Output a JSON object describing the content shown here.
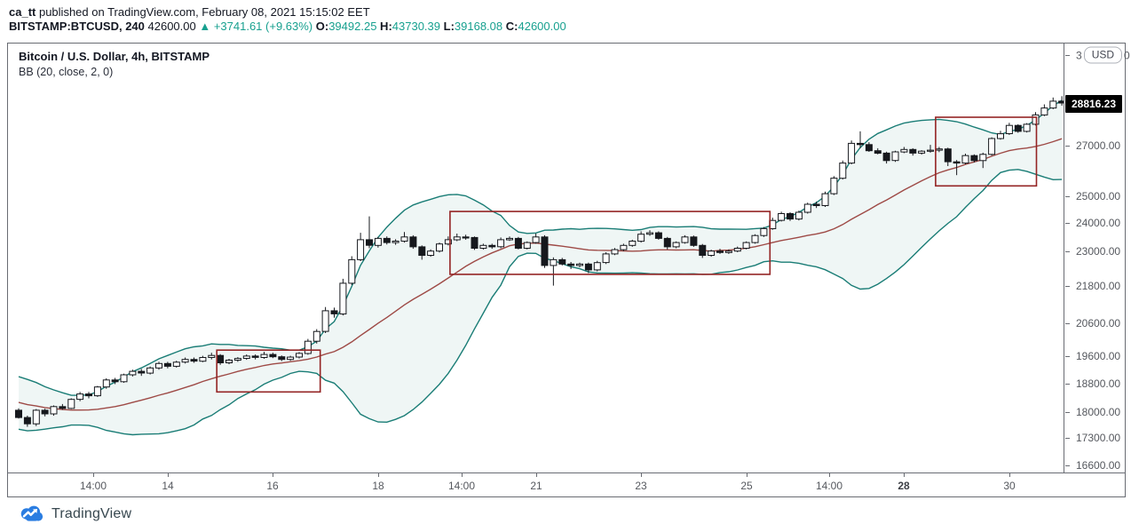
{
  "header": {
    "line1": [
      {
        "text": "ca_tt",
        "bold": true
      },
      {
        "text": " published on TradingView.com, February 08, 2021 15:15:02 EET"
      }
    ],
    "line2": [
      {
        "text": "BITSTAMP:BTCUSD, 240",
        "bold": true
      },
      {
        "text": " 42600.00 "
      },
      {
        "text": "▲ +3741.61 (+9.63%)",
        "teal": true
      },
      {
        "text": " O:",
        "bold": true
      },
      {
        "text": "39492.25",
        "teal": true
      },
      {
        "text": " H:",
        "bold": true
      },
      {
        "text": "43730.39",
        "teal": true
      },
      {
        "text": " L:",
        "bold": true
      },
      {
        "text": "39168.08",
        "teal": true
      },
      {
        "text": " C:",
        "bold": true
      },
      {
        "text": "42600.00",
        "teal": true
      }
    ]
  },
  "footer": {
    "brand": "TradingView"
  },
  "colors": {
    "accent_teal": "#17a08f",
    "band_line": "#1a7d76",
    "band_fill": "rgba(26,125,118,0.07)",
    "basis_line": "#9e4a46",
    "box_stroke": "#942424",
    "candle_dark": "#16181d",
    "candle_up_fill": "#ffffff",
    "axis_text": "#55585e",
    "frame_line": "#696c73",
    "tag_bg": "#000000",
    "tag_text": "#ffffff",
    "logo_blue": "#2a7de1"
  },
  "price_axis": {
    "currency_button": "USD",
    "partial_tick": {
      "prefix": "3",
      "suffix": "0",
      "price": 31000
    },
    "price_tag": {
      "label": "28816.23",
      "price": 28816.23
    }
  },
  "chart_data": {
    "type": "candlestick",
    "title": "Bitcoin / U.S. Dollar, 4h, BITSTAMP",
    "indicator": "BB (20, close, 2, 0)",
    "symbol": "BITSTAMP:BTCUSD",
    "interval": "4h",
    "scale": "log",
    "y_domain": [
      16416,
      31551
    ],
    "grid": false,
    "yticks": [
      {
        "label": "27000.00",
        "price": 27000
      },
      {
        "label": "25000.00",
        "price": 25000
      },
      {
        "label": "24000.00",
        "price": 24000
      },
      {
        "label": "23000.00",
        "price": 23000
      },
      {
        "label": "21800.00",
        "price": 21800
      },
      {
        "label": "20600.00",
        "price": 20600
      },
      {
        "label": "19600.00",
        "price": 19600
      },
      {
        "label": "18800.00",
        "price": 18800
      },
      {
        "label": "18000.00",
        "price": 18000
      },
      {
        "label": "17300.00",
        "price": 17300
      },
      {
        "label": "16600.00",
        "price": 16600
      }
    ],
    "xticks": [
      {
        "label": "14:00",
        "bar": 8.5
      },
      {
        "label": "14",
        "bar": 17
      },
      {
        "label": "16",
        "bar": 29
      },
      {
        "label": "18",
        "bar": 41
      },
      {
        "label": "14:00",
        "bar": 50.5
      },
      {
        "label": "21",
        "bar": 59
      },
      {
        "label": "23",
        "bar": 71
      },
      {
        "label": "25",
        "bar": 83
      },
      {
        "label": "14:00",
        "bar": 92.5
      },
      {
        "label": "28",
        "bar": 101,
        "bold": true
      },
      {
        "label": "30",
        "bar": 113
      }
    ],
    "bb": {
      "length": 20,
      "source": "close",
      "mult": 2,
      "offset": 0,
      "seed_closes": [
        19000,
        18900,
        18800,
        18850,
        18700,
        18600,
        18650,
        18500,
        18400,
        18300,
        18200,
        18100,
        18000,
        17900,
        17850,
        17900,
        17950,
        18000,
        17900,
        17950
      ]
    },
    "candles": [
      [
        18050,
        18100,
        17820,
        17850
      ],
      [
        17850,
        17900,
        17600,
        17680
      ],
      [
        17680,
        18080,
        17620,
        18050
      ],
      [
        18050,
        18090,
        17880,
        17950
      ],
      [
        17950,
        18180,
        17900,
        18150
      ],
      [
        18150,
        18220,
        18060,
        18100
      ],
      [
        18100,
        18380,
        18080,
        18350
      ],
      [
        18350,
        18560,
        18300,
        18500
      ],
      [
        18500,
        18560,
        18380,
        18450
      ],
      [
        18450,
        18730,
        18420,
        18700
      ],
      [
        18700,
        18950,
        18650,
        18900
      ],
      [
        18900,
        18960,
        18780,
        18850
      ],
      [
        18850,
        19080,
        18820,
        19050
      ],
      [
        19050,
        19200,
        19000,
        19150
      ],
      [
        19150,
        19220,
        19020,
        19100
      ],
      [
        19100,
        19290,
        19060,
        19250
      ],
      [
        19250,
        19430,
        19200,
        19380
      ],
      [
        19380,
        19430,
        19240,
        19300
      ],
      [
        19300,
        19460,
        19260,
        19420
      ],
      [
        19420,
        19560,
        19380,
        19500
      ],
      [
        19500,
        19560,
        19400,
        19450
      ],
      [
        19450,
        19610,
        19420,
        19560
      ],
      [
        19560,
        19700,
        19500,
        19620
      ],
      [
        19620,
        19660,
        19340,
        19400
      ],
      [
        19400,
        19520,
        19360,
        19480
      ],
      [
        19480,
        19570,
        19430,
        19530
      ],
      [
        19530,
        19650,
        19490,
        19600
      ],
      [
        19600,
        19650,
        19500,
        19560
      ],
      [
        19560,
        19730,
        19520,
        19650
      ],
      [
        19650,
        19700,
        19540,
        19580
      ],
      [
        19580,
        19620,
        19450,
        19500
      ],
      [
        19500,
        19610,
        19460,
        19570
      ],
      [
        19570,
        19720,
        19530,
        19680
      ],
      [
        19680,
        20120,
        19640,
        20050
      ],
      [
        20050,
        20420,
        19980,
        20350
      ],
      [
        20350,
        21120,
        20300,
        21000
      ],
      [
        21000,
        21100,
        20780,
        20900
      ],
      [
        20900,
        22050,
        20850,
        21900
      ],
      [
        21900,
        22820,
        21840,
        22700
      ],
      [
        22700,
        23650,
        22650,
        23400
      ],
      [
        23400,
        24250,
        23100,
        23200
      ],
      [
        23200,
        23500,
        23120,
        23450
      ],
      [
        23450,
        23520,
        23230,
        23300
      ],
      [
        23300,
        23420,
        23220,
        23350
      ],
      [
        23350,
        23680,
        23300,
        23500
      ],
      [
        23500,
        23560,
        23080,
        23150
      ],
      [
        23150,
        23200,
        22700,
        22850
      ],
      [
        22850,
        23060,
        22800,
        23000
      ],
      [
        23000,
        23300,
        22950,
        23250
      ],
      [
        23250,
        23520,
        23200,
        23400
      ],
      [
        23400,
        23620,
        23350,
        23500
      ],
      [
        23500,
        23580,
        23400,
        23480
      ],
      [
        23480,
        23520,
        23040,
        23100
      ],
      [
        23100,
        23260,
        23050,
        23200
      ],
      [
        23200,
        23260,
        23080,
        23150
      ],
      [
        23150,
        23480,
        23100,
        23400
      ],
      [
        23400,
        23520,
        23360,
        23450
      ],
      [
        23450,
        23500,
        23060,
        23100
      ],
      [
        23100,
        23340,
        23060,
        23300
      ],
      [
        23300,
        23620,
        23260,
        23500
      ],
      [
        23500,
        23560,
        22420,
        22500
      ],
      [
        22500,
        22780,
        21820,
        22700
      ],
      [
        22700,
        22760,
        22500,
        22550
      ],
      [
        22550,
        22620,
        22380,
        22500
      ],
      [
        22500,
        22600,
        22440,
        22550
      ],
      [
        22550,
        22600,
        22240,
        22350
      ],
      [
        22350,
        22660,
        22300,
        22600
      ],
      [
        22600,
        22960,
        22550,
        22900
      ],
      [
        22900,
        23110,
        22860,
        23050
      ],
      [
        23050,
        23260,
        23000,
        23200
      ],
      [
        23200,
        23400,
        23150,
        23350
      ],
      [
        23350,
        23700,
        23300,
        23600
      ],
      [
        23600,
        23740,
        23540,
        23650
      ],
      [
        23650,
        23700,
        23400,
        23450
      ],
      [
        23450,
        23500,
        23060,
        23150
      ],
      [
        23150,
        23340,
        23100,
        23300
      ],
      [
        23300,
        23560,
        23260,
        23500
      ],
      [
        23500,
        23550,
        23150,
        23200
      ],
      [
        23200,
        23250,
        22760,
        22850
      ],
      [
        22850,
        23050,
        22800,
        23000
      ],
      [
        23000,
        23080,
        22900,
        22950
      ],
      [
        22950,
        23060,
        22900,
        23000
      ],
      [
        23000,
        23160,
        22960,
        23100
      ],
      [
        23100,
        23340,
        23060,
        23300
      ],
      [
        23300,
        23600,
        23260,
        23550
      ],
      [
        23550,
        23860,
        23500,
        23800
      ],
      [
        23800,
        24200,
        23760,
        24100
      ],
      [
        24100,
        24420,
        24060,
        24350
      ],
      [
        24350,
        24400,
        24080,
        24150
      ],
      [
        24150,
        24460,
        24100,
        24400
      ],
      [
        24400,
        24760,
        24350,
        24700
      ],
      [
        24700,
        24800,
        24560,
        24650
      ],
      [
        24650,
        25180,
        24600,
        25100
      ],
      [
        25100,
        25780,
        25050,
        25700
      ],
      [
        25700,
        26400,
        25650,
        26300
      ],
      [
        26300,
        27220,
        26250,
        27100
      ],
      [
        27100,
        27600,
        26900,
        27050
      ],
      [
        27050,
        27150,
        26750,
        26800
      ],
      [
        26800,
        26900,
        26650,
        26700
      ],
      [
        26700,
        26760,
        26280,
        26400
      ],
      [
        26400,
        26800,
        26350,
        26750
      ],
      [
        26750,
        26950,
        26700,
        26850
      ],
      [
        26850,
        26900,
        26600,
        26700
      ],
      [
        26700,
        26820,
        26640,
        26780
      ],
      [
        26780,
        27040,
        26720,
        26820
      ],
      [
        26820,
        26950,
        26740,
        26870
      ],
      [
        26870,
        26920,
        26180,
        26350
      ],
      [
        26350,
        26420,
        25820,
        26300
      ],
      [
        26300,
        26680,
        26250,
        26600
      ],
      [
        26600,
        26650,
        26320,
        26400
      ],
      [
        26400,
        26720,
        26100,
        26650
      ],
      [
        26650,
        27350,
        26600,
        27300
      ],
      [
        27300,
        27620,
        27250,
        27500
      ],
      [
        27500,
        27960,
        27450,
        27850
      ],
      [
        27850,
        27900,
        27540,
        27600
      ],
      [
        27600,
        27950,
        27550,
        27900
      ],
      [
        27900,
        28420,
        27850,
        28300
      ],
      [
        28300,
        28760,
        28250,
        28600
      ],
      [
        28600,
        29060,
        28550,
        28900
      ],
      [
        28900,
        29120,
        28700,
        28816.23
      ]
    ],
    "highlight_boxes": [
      {
        "bar_start": 22.6,
        "bar_end": 34.4,
        "price_top": 19780,
        "price_bottom": 18560
      },
      {
        "bar_start": 49.2,
        "bar_end": 85.7,
        "price_top": 24430,
        "price_bottom": 22200
      },
      {
        "bar_start": 104.6,
        "bar_end": 116.1,
        "price_top": 28200,
        "price_bottom": 25400
      }
    ]
  }
}
